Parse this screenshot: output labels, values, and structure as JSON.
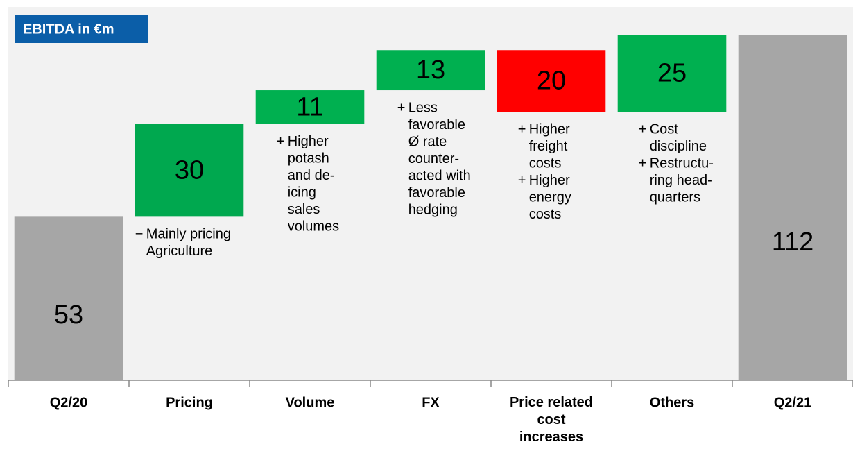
{
  "chart_data": {
    "type": "waterfall",
    "title": "EBITDA in €m",
    "categories": [
      "Q2/20",
      "Pricing",
      "Volume",
      "FX",
      "Price related cost increases",
      "Others",
      "Q2/21"
    ],
    "values": [
      53,
      30,
      11,
      13,
      -20,
      25,
      112
    ],
    "value_labels": [
      "53",
      "30",
      "11",
      "13",
      "20",
      "25",
      "112"
    ],
    "measure": [
      "absolute",
      "relative",
      "relative",
      "relative",
      "relative",
      "relative",
      "absolute"
    ],
    "colors": [
      "#a6a6a6",
      "#00a84f",
      "#00b050",
      "#00b050",
      "#ff0000",
      "#00b050",
      "#a6a6a6"
    ],
    "ylim": [
      0,
      121
    ],
    "notes": [
      null,
      [
        {
          "bullet": "−",
          "lines": [
            "Mainly pricing",
            "Agriculture"
          ]
        }
      ],
      [
        {
          "bullet": "+",
          "lines": [
            "Higher",
            "potash",
            "and de-",
            "icing",
            "sales",
            "volumes"
          ]
        }
      ],
      [
        {
          "bullet": "+",
          "lines": [
            "Less",
            "favorable",
            "Ø rate",
            "counter-",
            "acted with",
            "favorable",
            "hedging"
          ]
        }
      ],
      [
        {
          "bullet": "+",
          "lines": [
            "Higher",
            "freight",
            "costs"
          ]
        },
        {
          "bullet": "+",
          "lines": [
            "Higher",
            "energy",
            "costs"
          ]
        }
      ],
      [
        {
          "bullet": "+",
          "lines": [
            "Cost",
            "discipline"
          ]
        },
        {
          "bullet": "+",
          "lines": [
            "Restructu-",
            "ring head-",
            "quarters"
          ]
        }
      ],
      null
    ]
  }
}
